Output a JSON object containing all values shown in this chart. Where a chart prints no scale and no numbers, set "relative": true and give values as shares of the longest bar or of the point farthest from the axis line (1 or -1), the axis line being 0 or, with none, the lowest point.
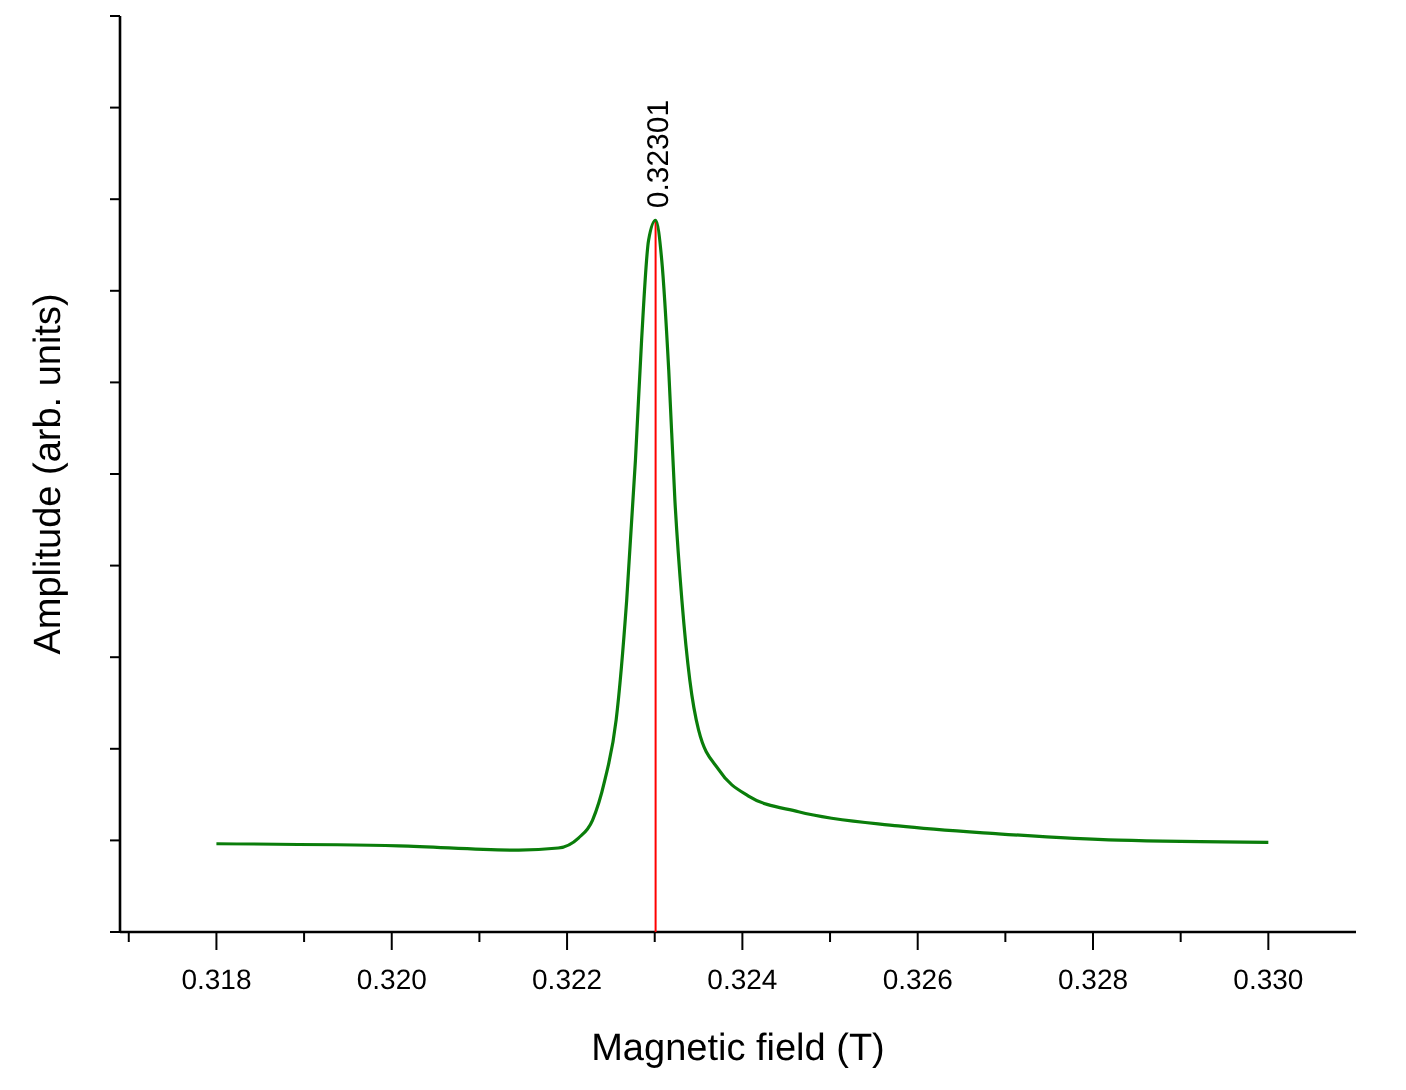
{
  "chart_data": {
    "type": "line",
    "xlabel": "Magnetic field (T)",
    "ylabel": "Amplitude (arb. units)",
    "relative": true,
    "xlim": [
      0.3169,
      0.331
    ],
    "xticks": [
      {
        "value": 0.317,
        "label": null
      },
      {
        "value": 0.318,
        "label": "0.318"
      },
      {
        "value": 0.319,
        "label": null
      },
      {
        "value": 0.32,
        "label": "0.320"
      },
      {
        "value": 0.321,
        "label": null
      },
      {
        "value": 0.322,
        "label": "0.322"
      },
      {
        "value": 0.323,
        "label": null
      },
      {
        "value": 0.324,
        "label": "0.324"
      },
      {
        "value": 0.325,
        "label": null
      },
      {
        "value": 0.326,
        "label": "0.326"
      },
      {
        "value": 0.327,
        "label": null
      },
      {
        "value": 0.328,
        "label": "0.328"
      },
      {
        "value": 0.329,
        "label": null
      },
      {
        "value": 0.33,
        "label": "0.330"
      }
    ],
    "series": [
      {
        "color": "#0a7d0a",
        "x": [
          0.318,
          0.32008,
          0.32145,
          0.3219,
          0.32213,
          0.32229,
          0.32243,
          0.32256,
          0.32268,
          0.32278,
          0.32285,
          0.32293,
          0.32301,
          0.32308,
          0.32316,
          0.32323,
          0.32331,
          0.3234,
          0.3235,
          0.32373,
          0.32407,
          0.32464,
          0.32578,
          0.32692,
          0.32829,
          0.33
        ],
        "values": [
          0.124,
          0.121,
          0.115,
          0.118,
          0.132,
          0.157,
          0.213,
          0.298,
          0.466,
          0.663,
          0.831,
          0.972,
          1,
          0.944,
          0.789,
          0.607,
          0.466,
          0.354,
          0.284,
          0.228,
          0.191,
          0.169,
          0.149,
          0.138,
          0.129,
          0.126
        ]
      }
    ],
    "ref_lines": [
      {
        "axis": "x",
        "value": 0.32301,
        "label": "0.32301",
        "color": "#ff0000"
      }
    ]
  }
}
